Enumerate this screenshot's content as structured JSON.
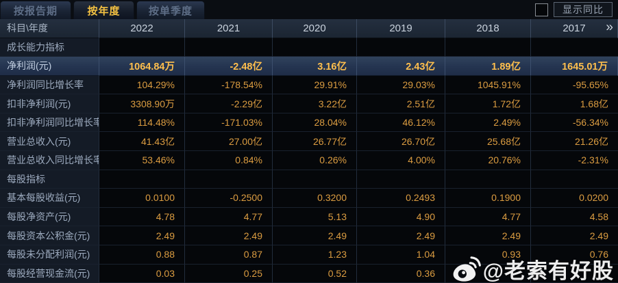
{
  "tabs": [
    {
      "label": "按报告期",
      "active": false
    },
    {
      "label": "按年度",
      "active": true
    },
    {
      "label": "按单季度",
      "active": false
    }
  ],
  "controls": {
    "show_yoy_label": "显示同比",
    "checkbox_checked": false
  },
  "table": {
    "corner_label": "科目\\年度",
    "years": [
      "2022",
      "2021",
      "2020",
      "2019",
      "2018",
      "2017"
    ],
    "more_icon": "»",
    "rows": [
      {
        "type": "section",
        "label": "成长能力指标"
      },
      {
        "type": "data",
        "highlight": true,
        "label": "净利润(元)",
        "values": [
          "1064.84万",
          "-2.48亿",
          "3.16亿",
          "2.43亿",
          "1.89亿",
          "1645.01万"
        ]
      },
      {
        "type": "data",
        "highlight": false,
        "label": "净利润同比增长率",
        "values": [
          "104.29%",
          "-178.54%",
          "29.91%",
          "29.03%",
          "1045.91%",
          "-95.65%"
        ]
      },
      {
        "type": "data",
        "highlight": false,
        "label": "扣非净利润(元)",
        "values": [
          "3308.90万",
          "-2.29亿",
          "3.22亿",
          "2.51亿",
          "1.72亿",
          "1.68亿"
        ]
      },
      {
        "type": "data",
        "highlight": false,
        "label": "扣非净利润同比增长率",
        "values": [
          "114.48%",
          "-171.03%",
          "28.04%",
          "46.12%",
          "2.49%",
          "-56.34%"
        ]
      },
      {
        "type": "data",
        "highlight": false,
        "label": "营业总收入(元)",
        "values": [
          "41.43亿",
          "27.00亿",
          "26.77亿",
          "26.70亿",
          "25.68亿",
          "21.26亿"
        ]
      },
      {
        "type": "data",
        "highlight": false,
        "label": "营业总收入同比增长率",
        "values": [
          "53.46%",
          "0.84%",
          "0.26%",
          "4.00%",
          "20.76%",
          "-2.31%"
        ]
      },
      {
        "type": "section",
        "label": "每股指标"
      },
      {
        "type": "data",
        "highlight": false,
        "label": "基本每股收益(元)",
        "values": [
          "0.0100",
          "-0.2500",
          "0.3200",
          "0.2493",
          "0.1900",
          "0.0200"
        ]
      },
      {
        "type": "data",
        "highlight": false,
        "label": "每股净资产(元)",
        "values": [
          "4.78",
          "4.77",
          "5.13",
          "4.90",
          "4.77",
          "4.58"
        ]
      },
      {
        "type": "data",
        "highlight": false,
        "label": "每股资本公积金(元)",
        "values": [
          "2.49",
          "2.49",
          "2.49",
          "2.49",
          "2.49",
          "2.49"
        ]
      },
      {
        "type": "data",
        "highlight": false,
        "label": "每股未分配利润(元)",
        "values": [
          "0.88",
          "0.87",
          "1.23",
          "1.04",
          "0.93",
          "0.76"
        ]
      },
      {
        "type": "data",
        "highlight": false,
        "label": "每股经营现金流(元)",
        "values": [
          "0.03",
          "0.25",
          "0.52",
          "0.36",
          "",
          ""
        ]
      }
    ]
  },
  "watermark": {
    "text": "@老索有好股",
    "icon": "weibo-icon"
  },
  "colors": {
    "accent_gold": "#f5c242",
    "value_orange": "#dc9d41",
    "highlight_value": "#ffbf4d",
    "highlight_row_bg": "#273852",
    "header_bg": "#1e2836",
    "label_col_bg": "#141b26",
    "data_cell_bg": "#05070a"
  }
}
